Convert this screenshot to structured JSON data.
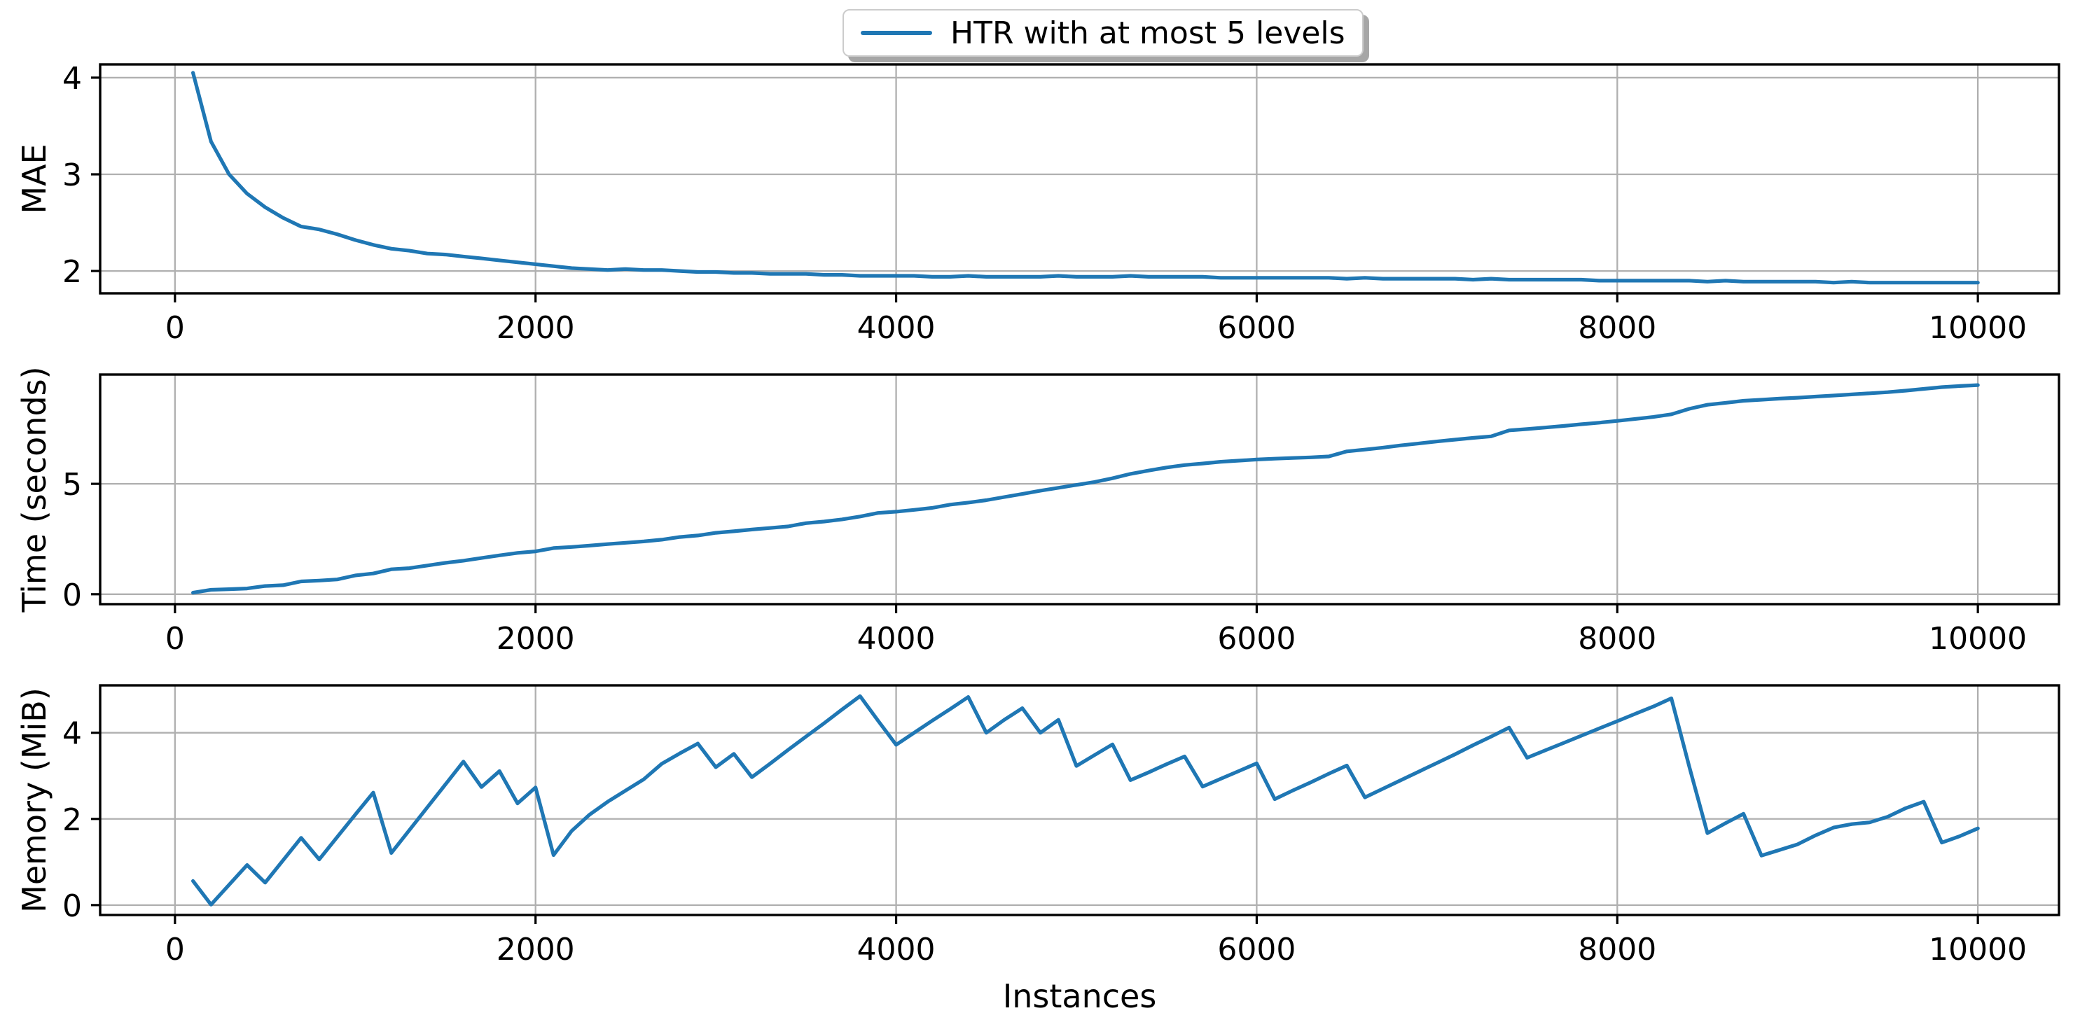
{
  "figure": {
    "background": "#ffffff",
    "text_color": "#000000",
    "grid_color": "#b0b0b0",
    "spine_color": "#000000"
  },
  "legend": {
    "label": "HTR with at most 5 levels",
    "line_color": "#1f77b4",
    "position": "upper center",
    "shadow": true
  },
  "chart_data": [
    {
      "type": "line",
      "name": "mae-vs-instances",
      "ylabel": "MAE",
      "xlabel": "",
      "grid": true,
      "xticks": [
        0,
        2000,
        4000,
        6000,
        8000,
        10000
      ],
      "yticks": [
        2,
        3,
        4
      ],
      "xlim": [
        -415,
        10450
      ],
      "ylim": [
        1.769,
        4.137
      ],
      "x": {
        "start": 100,
        "step": 100,
        "end": 10000
      },
      "series": [
        {
          "name": "HTR with at most 5 levels",
          "color": "#1f77b4",
          "values": [
            4.05,
            3.34,
            3.0,
            2.8,
            2.66,
            2.55,
            2.46,
            2.43,
            2.38,
            2.32,
            2.27,
            2.23,
            2.21,
            2.18,
            2.17,
            2.15,
            2.13,
            2.11,
            2.09,
            2.07,
            2.05,
            2.03,
            2.02,
            2.01,
            2.02,
            2.01,
            2.01,
            2.0,
            1.99,
            1.99,
            1.98,
            1.98,
            1.97,
            1.97,
            1.97,
            1.96,
            1.96,
            1.95,
            1.95,
            1.95,
            1.95,
            1.94,
            1.94,
            1.95,
            1.94,
            1.94,
            1.94,
            1.94,
            1.95,
            1.94,
            1.94,
            1.94,
            1.95,
            1.94,
            1.94,
            1.94,
            1.94,
            1.93,
            1.93,
            1.93,
            1.93,
            1.93,
            1.93,
            1.93,
            1.92,
            1.93,
            1.92,
            1.92,
            1.92,
            1.92,
            1.92,
            1.91,
            1.92,
            1.91,
            1.91,
            1.91,
            1.91,
            1.91,
            1.9,
            1.9,
            1.9,
            1.9,
            1.9,
            1.9,
            1.89,
            1.9,
            1.89,
            1.89,
            1.89,
            1.89,
            1.89,
            1.88,
            1.89,
            1.88,
            1.88,
            1.88,
            1.88,
            1.88,
            1.88,
            1.88
          ]
        }
      ]
    },
    {
      "type": "line",
      "name": "time-vs-instances",
      "ylabel": "Time (seconds)",
      "xlabel": "",
      "grid": true,
      "xticks": [
        0,
        2000,
        4000,
        6000,
        8000,
        10000
      ],
      "yticks": [
        0,
        5
      ],
      "xlim": [
        -415,
        10450
      ],
      "ylim": [
        -0.45,
        9.95
      ],
      "x": {
        "start": 100,
        "step": 100,
        "end": 10000
      },
      "series": [
        {
          "name": "HTR with at most 5 levels",
          "color": "#1f77b4",
          "values": [
            0.07,
            0.2,
            0.23,
            0.26,
            0.37,
            0.41,
            0.58,
            0.62,
            0.67,
            0.85,
            0.94,
            1.13,
            1.18,
            1.3,
            1.42,
            1.52,
            1.64,
            1.76,
            1.87,
            1.94,
            2.09,
            2.14,
            2.2,
            2.27,
            2.33,
            2.39,
            2.47,
            2.59,
            2.66,
            2.78,
            2.85,
            2.93,
            3.0,
            3.07,
            3.22,
            3.29,
            3.39,
            3.52,
            3.68,
            3.74,
            3.82,
            3.91,
            4.06,
            4.15,
            4.26,
            4.4,
            4.54,
            4.69,
            4.82,
            4.95,
            5.08,
            5.25,
            5.45,
            5.6,
            5.74,
            5.85,
            5.92,
            6.0,
            6.05,
            6.1,
            6.14,
            6.17,
            6.2,
            6.24,
            6.47,
            6.55,
            6.64,
            6.74,
            6.83,
            6.92,
            7.0,
            7.08,
            7.15,
            7.42,
            7.48,
            7.55,
            7.62,
            7.7,
            7.77,
            7.85,
            7.94,
            8.03,
            8.15,
            8.4,
            8.58,
            8.67,
            8.76,
            8.81,
            8.86,
            8.9,
            8.95,
            9.0,
            9.05,
            9.1,
            9.15,
            9.22,
            9.3,
            9.38,
            9.43,
            9.47
          ]
        }
      ]
    },
    {
      "type": "line",
      "name": "memory-vs-instances",
      "ylabel": "Memory (MiB)",
      "xlabel": "Instances",
      "grid": true,
      "xticks": [
        0,
        2000,
        4000,
        6000,
        8000,
        10000
      ],
      "yticks": [
        0,
        2,
        4
      ],
      "xlim": [
        -415,
        10450
      ],
      "ylim": [
        -0.23,
        5.1
      ],
      "x": {
        "start": 100,
        "step": 100,
        "end": 10000
      },
      "series": [
        {
          "name": "HTR with at most 5 levels",
          "color": "#1f77b4",
          "values": [
            0.56,
            0.01,
            0.47,
            0.93,
            0.52,
            1.04,
            1.56,
            1.06,
            1.58,
            2.1,
            2.61,
            1.21,
            1.74,
            2.27,
            2.8,
            3.33,
            2.74,
            3.11,
            2.36,
            2.73,
            1.16,
            1.72,
            2.1,
            2.4,
            2.66,
            2.92,
            3.28,
            3.52,
            3.75,
            3.2,
            3.51,
            2.97,
            3.28,
            3.6,
            3.91,
            4.22,
            4.54,
            4.85,
            4.28,
            3.72,
            4.0,
            4.28,
            4.55,
            4.83,
            4.0,
            4.3,
            4.57,
            4.0,
            4.3,
            3.23,
            3.48,
            3.73,
            2.9,
            3.08,
            3.27,
            3.45,
            2.75,
            2.93,
            3.11,
            3.29,
            2.46,
            2.66,
            2.85,
            3.05,
            3.24,
            2.5,
            2.7,
            2.9,
            3.1,
            3.3,
            3.5,
            3.71,
            3.91,
            4.12,
            3.42,
            3.59,
            3.76,
            3.93,
            4.1,
            4.27,
            4.44,
            4.61,
            4.8,
            3.2,
            1.67,
            1.9,
            2.12,
            1.15,
            1.28,
            1.41,
            1.62,
            1.8,
            1.88,
            1.92,
            2.05,
            2.25,
            2.4,
            1.45,
            1.6,
            1.78
          ]
        }
      ]
    }
  ]
}
